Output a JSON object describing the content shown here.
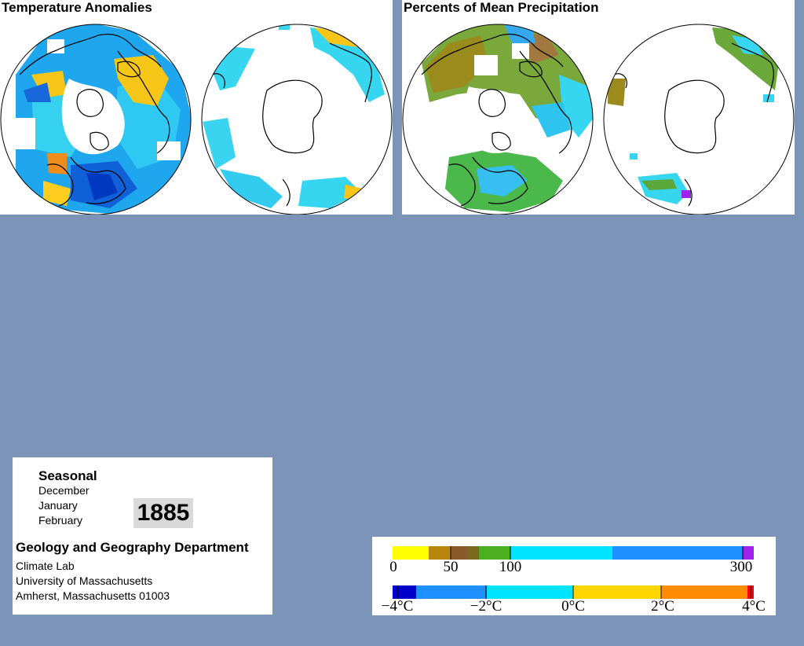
{
  "panels": {
    "temperature": {
      "title": "Temperature Anomalies"
    },
    "precipitation": {
      "title": "Percents of Mean Precipitation"
    }
  },
  "info": {
    "season": "Seasonal",
    "months": [
      "December",
      "January",
      "February"
    ],
    "year": "1885",
    "department": "Geology and Geography Department",
    "lines": [
      "Climate Lab",
      "University of Massachusetts",
      "Amherst, Massachusetts 01003"
    ]
  },
  "legend": {
    "precipitation": {
      "ticks": [
        "0",
        "50",
        "100",
        "300"
      ],
      "colors": [
        "#ffff00",
        "#b8860b",
        "#8b5a2b",
        "#4caf20",
        "#00e5ff",
        "#1e90ff",
        "#a020f0"
      ]
    },
    "temperature": {
      "ticks": [
        "−4°C",
        "−2°C",
        "0°C",
        "2°C",
        "4°C"
      ],
      "colors": [
        "#0000cd",
        "#1e90ff",
        "#00e5ff",
        "#ffff00",
        "#ffa500",
        "#ff0000"
      ]
    }
  },
  "colors": {
    "background": "#7b94b8",
    "land_outline": "#000000",
    "cold": "#1e90ff",
    "mild_cold": "#00d8f0",
    "warm": "#ffd700",
    "dry": "#9b8a1c",
    "wet_green": "#5aa83a"
  }
}
